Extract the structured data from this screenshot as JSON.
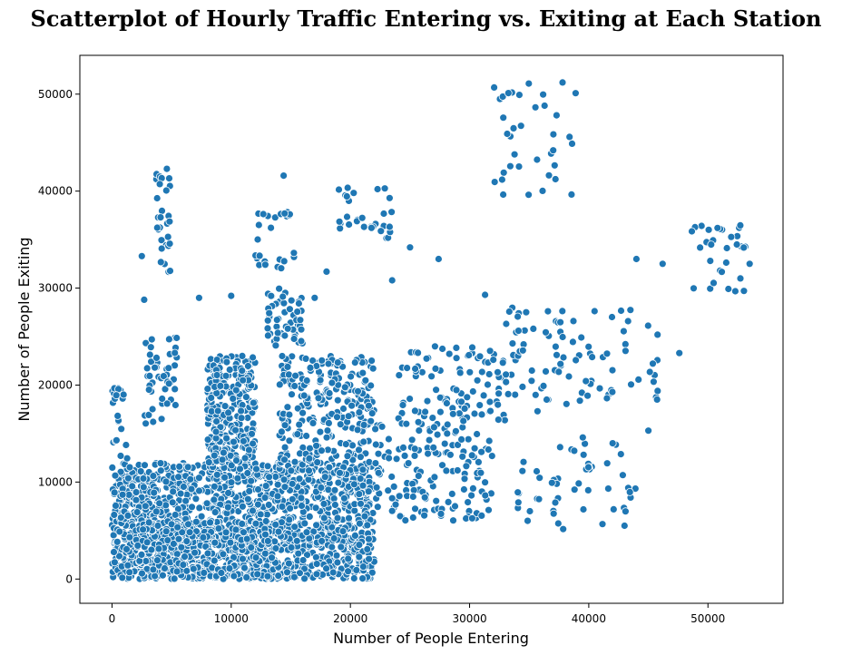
{
  "chart_data": {
    "type": "scatter",
    "title": "Scatterplot of Hourly Traffic Entering vs. Exiting at Each Station",
    "xlabel": "Number of People Entering",
    "ylabel": "Number of People Exiting",
    "xlim": [
      -2700,
      56300
    ],
    "ylim": [
      -2500,
      54000
    ],
    "xticks": [
      0,
      10000,
      20000,
      30000,
      40000,
      50000
    ],
    "yticks": [
      0,
      10000,
      20000,
      30000,
      40000,
      50000
    ],
    "grid": false,
    "legend": "none",
    "marker_color": "#1f77b4",
    "marker_edge_color": "#ffffff",
    "clusters": [
      {
        "x": [
          0,
          22000
        ],
        "y": [
          0,
          12000
        ],
        "n": 1500
      },
      {
        "x": [
          2000,
          14000
        ],
        "y": [
          0,
          6000
        ],
        "n": 400
      },
      {
        "x": [
          8000,
          12000
        ],
        "y": [
          12000,
          23000
        ],
        "n": 300
      },
      {
        "x": [
          14000,
          22000
        ],
        "y": [
          12000,
          23000
        ],
        "n": 250
      },
      {
        "x": [
          22000,
          32000
        ],
        "y": [
          6000,
          16000
        ],
        "n": 150
      },
      {
        "x": [
          24000,
          33000
        ],
        "y": [
          16000,
          24000
        ],
        "n": 100
      },
      {
        "x": [
          33000,
          46000
        ],
        "y": [
          18000,
          28000
        ],
        "n": 90
      },
      {
        "x": [
          34000,
          44000
        ],
        "y": [
          5000,
          14000
        ],
        "n": 50
      },
      {
        "x": [
          3500,
          5000
        ],
        "y": [
          31000,
          42000
        ],
        "n": 30
      },
      {
        "x": [
          2500,
          5500
        ],
        "y": [
          16000,
          25000
        ],
        "n": 50
      },
      {
        "x": [
          13000,
          16000
        ],
        "y": [
          24000,
          30000
        ],
        "n": 50
      },
      {
        "x": [
          12000,
          15500
        ],
        "y": [
          32000,
          38000
        ],
        "n": 25
      },
      {
        "x": [
          19000,
          23500
        ],
        "y": [
          35000,
          40500
        ],
        "n": 30
      },
      {
        "x": [
          32000,
          39000
        ],
        "y": [
          39500,
          51500
        ],
        "n": 35
      },
      {
        "x": [
          48000,
          53500
        ],
        "y": [
          29500,
          36500
        ],
        "n": 30
      },
      {
        "x": [
          0,
          1500
        ],
        "y": [
          0,
          20000
        ],
        "n": 60
      }
    ],
    "points": [
      [
        37800,
        51200
      ],
      [
        38900,
        50100
      ],
      [
        4600,
        42300
      ],
      [
        14400,
        41600
      ],
      [
        53500,
        32500
      ],
      [
        50800,
        36200
      ],
      [
        47600,
        23300
      ],
      [
        43000,
        5500
      ],
      [
        12200,
        500
      ],
      [
        15300,
        200
      ],
      [
        19800,
        800
      ],
      [
        25000,
        34200
      ],
      [
        27400,
        33000
      ],
      [
        31300,
        29300
      ],
      [
        2500,
        33300
      ],
      [
        7300,
        29000
      ],
      [
        10000,
        29200
      ],
      [
        2700,
        28800
      ],
      [
        23500,
        30800
      ],
      [
        17000,
        29000
      ],
      [
        44000,
        33000
      ],
      [
        46200,
        32500
      ],
      [
        42000,
        14000
      ],
      [
        45000,
        15300
      ],
      [
        35700,
        17300
      ],
      [
        34100,
        25600
      ],
      [
        39500,
        14600
      ],
      [
        18000,
        31700
      ]
    ]
  }
}
